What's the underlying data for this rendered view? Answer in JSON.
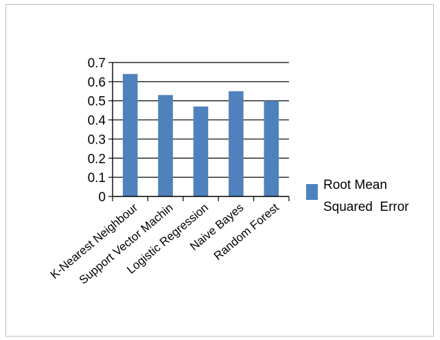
{
  "chart_data": {
    "type": "bar",
    "categories": [
      "K-Nearest Neighbour",
      "Support Vector Machin",
      "Logistic Regression",
      "Naive Bayes",
      "Random Forest"
    ],
    "series": [
      {
        "name": "Root Mean Squared  Error",
        "values": [
          0.64,
          0.53,
          0.47,
          0.55,
          0.5
        ]
      }
    ],
    "legend_lines": [
      "Root Mean",
      "Squared  Error"
    ],
    "ylim": [
      0,
      0.7
    ],
    "yticks": [
      "0",
      "0.1",
      "0.2",
      "0.3",
      "0.4",
      "0.5",
      "0.6",
      "0.7"
    ],
    "grid": true,
    "legend_position": "right",
    "colors": {
      "bar": "#4f81bd",
      "grid": "#000000",
      "axis": "#000000"
    }
  }
}
